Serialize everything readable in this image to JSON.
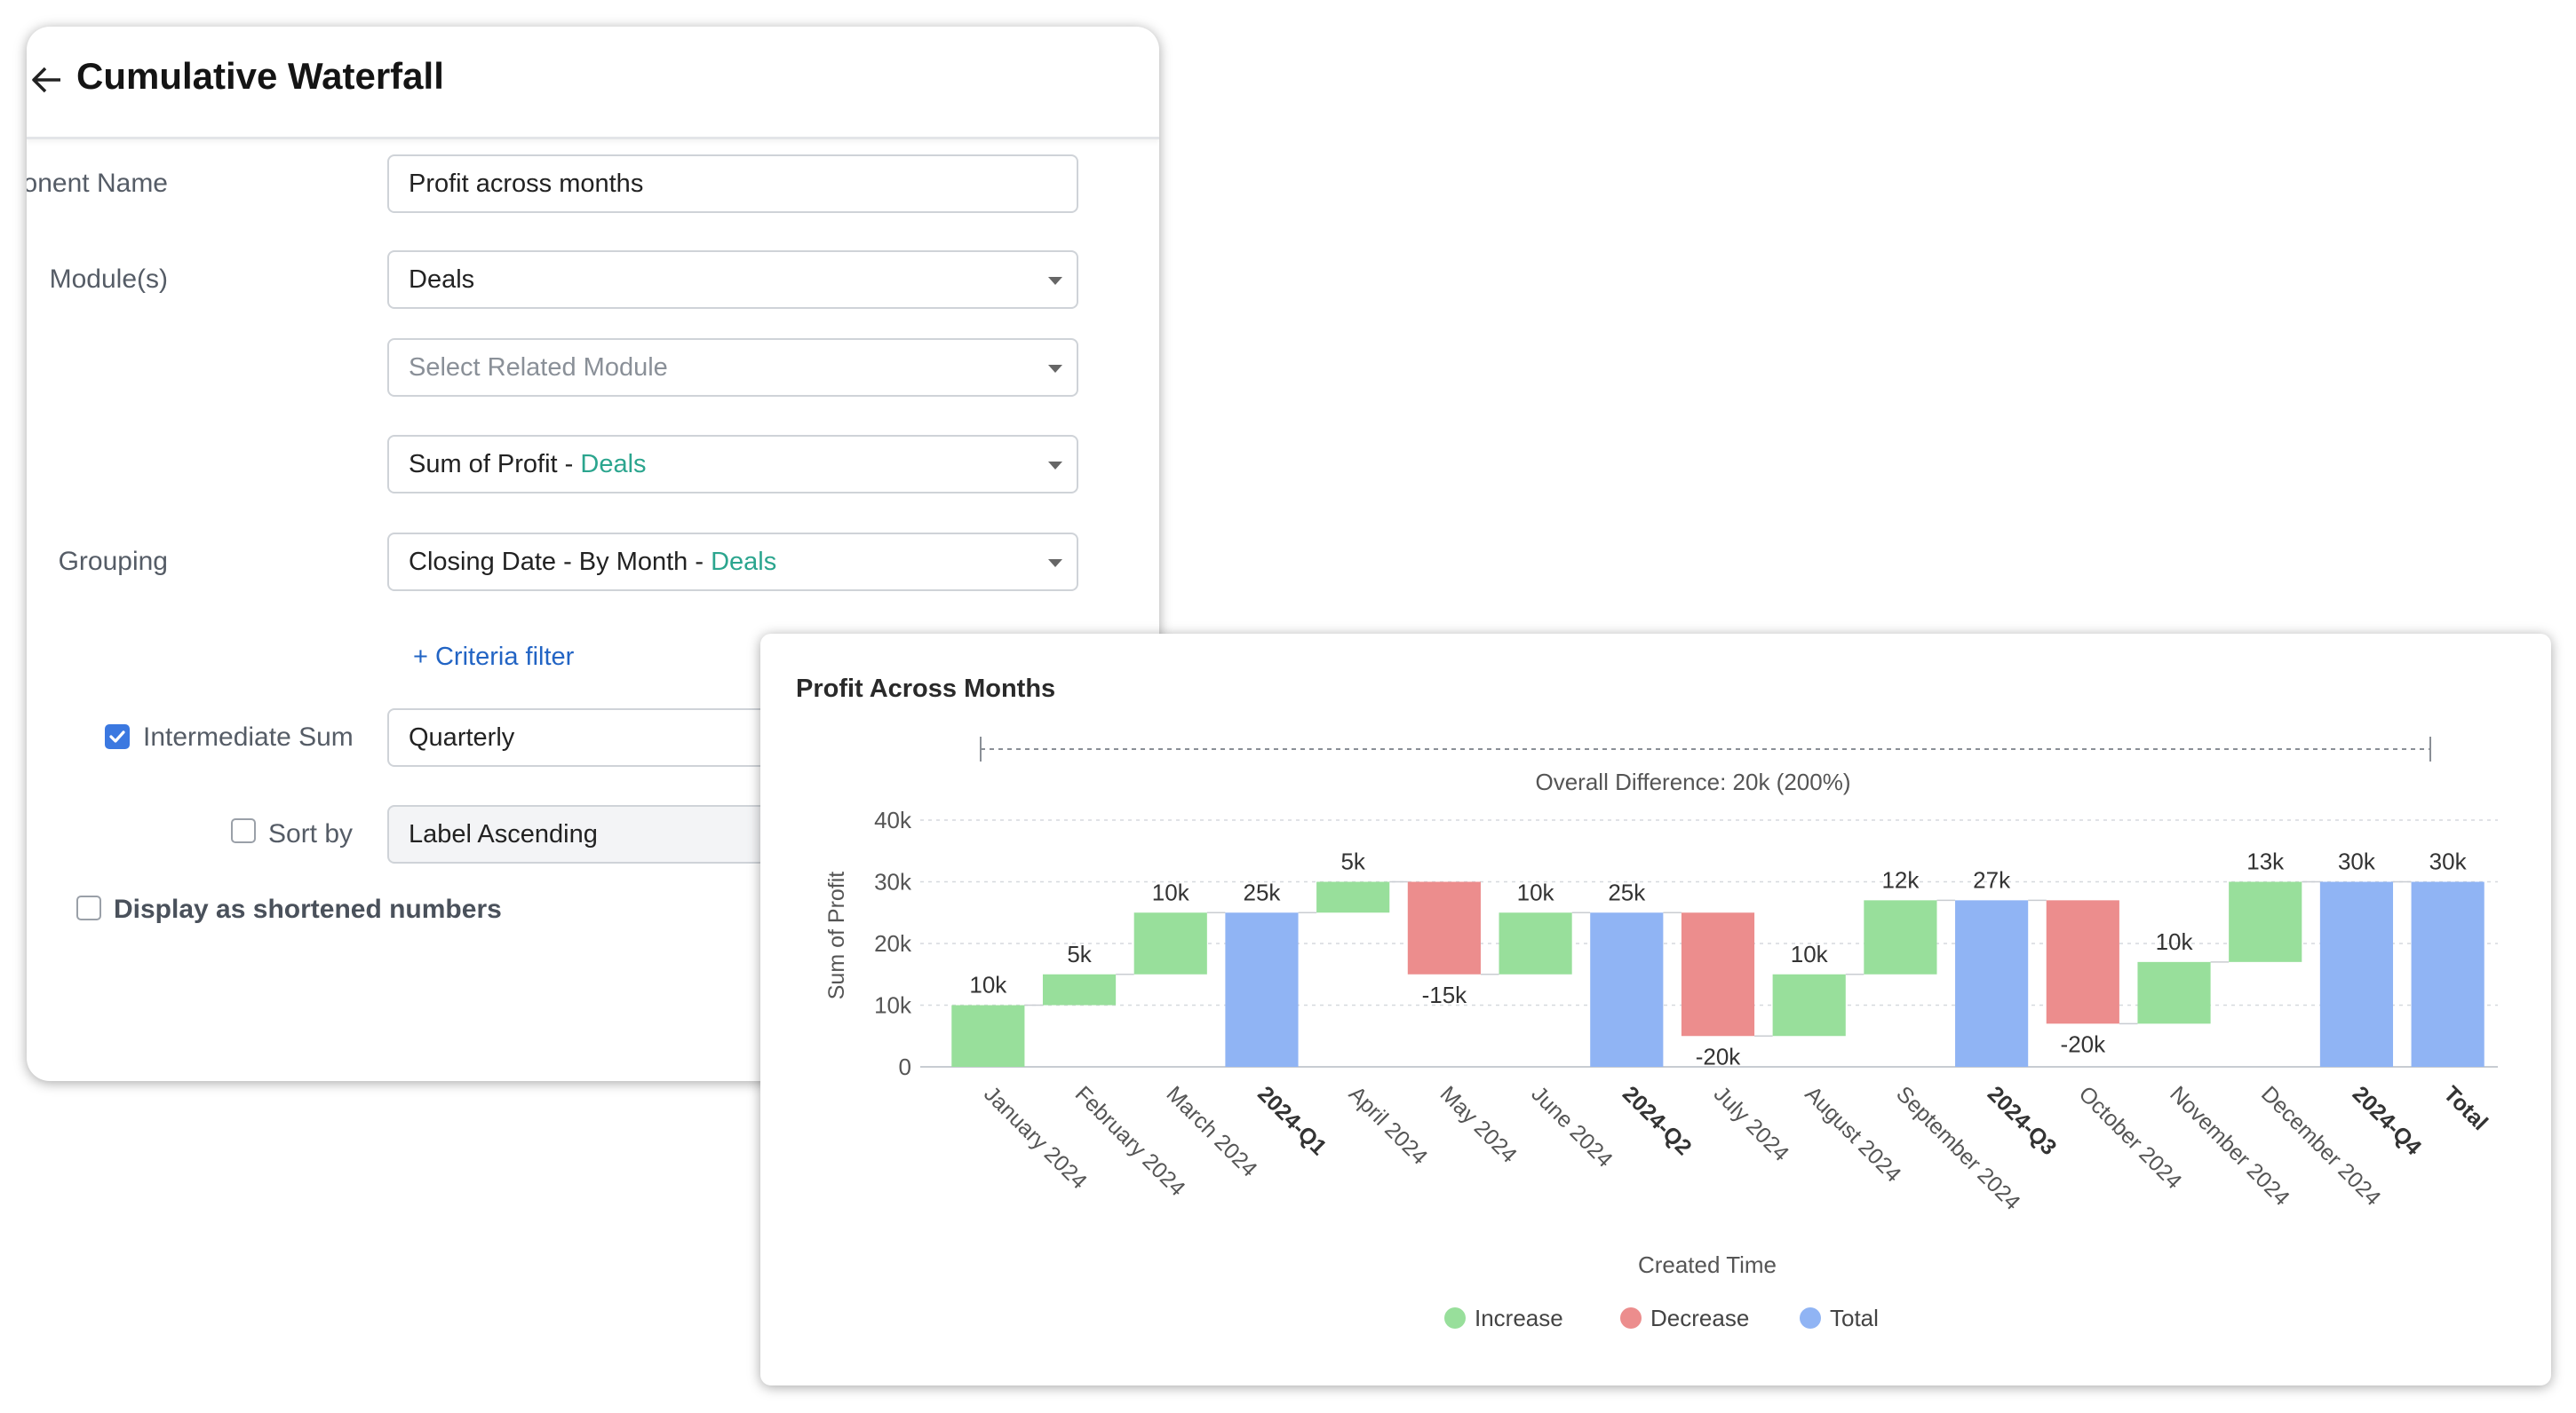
{
  "header": {
    "title": "Cumulative Waterfall"
  },
  "form": {
    "component_name_label": "Component Name",
    "component_name_value": "Profit across months",
    "modules_label": "Module(s)",
    "module_value": "Deals",
    "related_module_placeholder": "Select Related Module",
    "measure_text": "Sum of Profit - ",
    "measure_module": "Deals",
    "grouping_label": "Grouping",
    "grouping_text": "Closing Date - By Month - ",
    "grouping_module": "Deals",
    "criteria_link": "+ Criteria filter",
    "intermediate_sum_label": "Intermediate Sum",
    "intermediate_sum_checked": true,
    "intermediate_sum_value": "Quarterly",
    "sort_by_label": "Sort by",
    "sort_by_checked": false,
    "sort_by_value": "Label Ascending",
    "shortened_numbers_label": "Display as shortened numbers",
    "shortened_numbers_checked": false
  },
  "chart_data": {
    "type": "bar",
    "subtype": "waterfall",
    "title": "Profit Across Months",
    "annotation": "Overall Difference: 20k (200%)",
    "xlabel": "Created Time",
    "ylabel": "Sum of Profit",
    "ylim": [
      0,
      40000
    ],
    "yticks": [
      "0",
      "10k",
      "20k",
      "30k",
      "40k"
    ],
    "grid": true,
    "legend": {
      "placement": "bottom",
      "items": [
        {
          "name": "Increase",
          "color": "#98df9b"
        },
        {
          "name": "Decrease",
          "color": "#ec8d8d"
        },
        {
          "name": "Total",
          "color": "#90b4f4"
        }
      ]
    },
    "bars": [
      {
        "category": "January 2024",
        "kind": "increase",
        "start": 0,
        "end": 10000,
        "label": "10k"
      },
      {
        "category": "February 2024",
        "kind": "increase",
        "start": 10000,
        "end": 15000,
        "label": "5k"
      },
      {
        "category": "March 2024",
        "kind": "increase",
        "start": 15000,
        "end": 25000,
        "label": "10k"
      },
      {
        "category": "2024-Q1",
        "kind": "total",
        "start": 0,
        "end": 25000,
        "label": "25k",
        "bold": true
      },
      {
        "category": "April 2024",
        "kind": "increase",
        "start": 25000,
        "end": 30000,
        "label": "5k"
      },
      {
        "category": "May 2024",
        "kind": "decrease",
        "start": 30000,
        "end": 15000,
        "label": "-15k"
      },
      {
        "category": "June 2024",
        "kind": "increase",
        "start": 15000,
        "end": 25000,
        "label": "10k"
      },
      {
        "category": "2024-Q2",
        "kind": "total",
        "start": 0,
        "end": 25000,
        "label": "25k",
        "bold": true
      },
      {
        "category": "July 2024",
        "kind": "decrease",
        "start": 25000,
        "end": 5000,
        "label": "-20k"
      },
      {
        "category": "August 2024",
        "kind": "increase",
        "start": 5000,
        "end": 15000,
        "label": "10k"
      },
      {
        "category": "September 2024",
        "kind": "increase",
        "start": 15000,
        "end": 27000,
        "label": "12k"
      },
      {
        "category": "2024-Q3",
        "kind": "total",
        "start": 0,
        "end": 27000,
        "label": "27k",
        "bold": true
      },
      {
        "category": "October 2024",
        "kind": "decrease",
        "start": 27000,
        "end": 7000,
        "label": "-20k"
      },
      {
        "category": "November 2024",
        "kind": "increase",
        "start": 7000,
        "end": 17000,
        "label": "10k"
      },
      {
        "category": "December 2024",
        "kind": "increase",
        "start": 17000,
        "end": 30000,
        "label": "13k"
      },
      {
        "category": "2024-Q4",
        "kind": "total",
        "start": 0,
        "end": 30000,
        "label": "30k",
        "bold": true
      },
      {
        "category": "Total",
        "kind": "total",
        "start": 0,
        "end": 30000,
        "label": "30k",
        "bold": true
      }
    ]
  }
}
